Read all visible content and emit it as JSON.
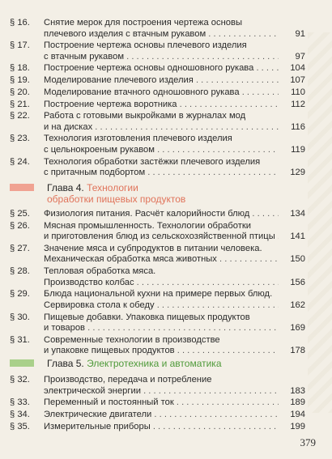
{
  "entries_top": [
    {
      "num": "§ 16.",
      "lines": [
        "Снятие мерок для построения чертежа основы",
        "плечевого изделия с втачным рукавом"
      ],
      "page": "91"
    },
    {
      "num": "§ 17.",
      "lines": [
        "Построение чертежа основы плечевого изделия",
        "с втачным рукавом"
      ],
      "page": "97"
    },
    {
      "num": "§ 18.",
      "lines": [
        "Построение чертежа основы одношовного рукава"
      ],
      "page": "104"
    },
    {
      "num": "§ 19.",
      "lines": [
        "Моделирование плечевого изделия"
      ],
      "page": "107"
    },
    {
      "num": "§ 20.",
      "lines": [
        "Моделирование втачного одношовного рукава"
      ],
      "page": "110"
    },
    {
      "num": "§ 21.",
      "lines": [
        "Построение чертежа воротника"
      ],
      "page": "112"
    },
    {
      "num": "§ 22.",
      "lines": [
        "Работа с готовыми выкройками в журналах мод",
        "и на дисках"
      ],
      "page": "116"
    },
    {
      "num": "§ 23.",
      "lines": [
        "Технология изготовления плечевого изделия",
        "с цельнокроеным рукавом"
      ],
      "page": "119"
    },
    {
      "num": "§ 24.",
      "lines": [
        "Технология обработки застёжки плечевого изделия",
        "с притачным подбортом"
      ],
      "page": "129"
    }
  ],
  "chapter4": {
    "label": "Глава 4.",
    "title_line1": "Технологии",
    "title_line2": "обработки пищевых продуктов",
    "color": "#e0735a",
    "bar_color": "#f0a292"
  },
  "entries_ch4": [
    {
      "num": "§ 25.",
      "lines": [
        "Физиология питания. Расчёт калорийности блюд"
      ],
      "page": "134"
    },
    {
      "num": "§ 26.",
      "lines": [
        "Мясная промышленность. Технологии обработки",
        "и приготовления блюд из сельскохозяйственной птицы"
      ],
      "page": "141"
    },
    {
      "num": "§ 27.",
      "lines": [
        "Значение мяса и субпродуктов в питании человека.",
        "Механическая обработка мяса животных"
      ],
      "page": "150"
    },
    {
      "num": "§ 28.",
      "lines": [
        "Тепловая обработка мяса.",
        "Производство колбас"
      ],
      "page": "156"
    },
    {
      "num": "§ 29.",
      "lines": [
        "Блюда национальной кухни на примере первых блюд.",
        "Сервировка стола к обеду"
      ],
      "page": "162"
    },
    {
      "num": "§ 30.",
      "lines": [
        "Пищевые добавки. Упаковка пищевых продуктов",
        "и товаров"
      ],
      "page": "169"
    },
    {
      "num": "§ 31.",
      "lines": [
        "Современные технологии в производстве",
        "и упаковке пищевых продуктов"
      ],
      "page": "178"
    }
  ],
  "chapter5": {
    "label": "Глава 5.",
    "title_line1": "Электротехника и автоматика",
    "color": "#4f9a3a",
    "bar_color": "#a9d08a"
  },
  "entries_ch5": [
    {
      "num": "§ 32.",
      "lines": [
        "Производство, передача и потребление",
        "электрической энергии"
      ],
      "page": "183"
    },
    {
      "num": "§ 33.",
      "lines": [
        "Переменный и постоянный ток"
      ],
      "page": "189"
    },
    {
      "num": "§ 34.",
      "lines": [
        "Электрические двигатели"
      ],
      "page": "194"
    },
    {
      "num": "§ 35.",
      "lines": [
        "Измерительные приборы"
      ],
      "page": "199"
    }
  ],
  "page_number": "379"
}
